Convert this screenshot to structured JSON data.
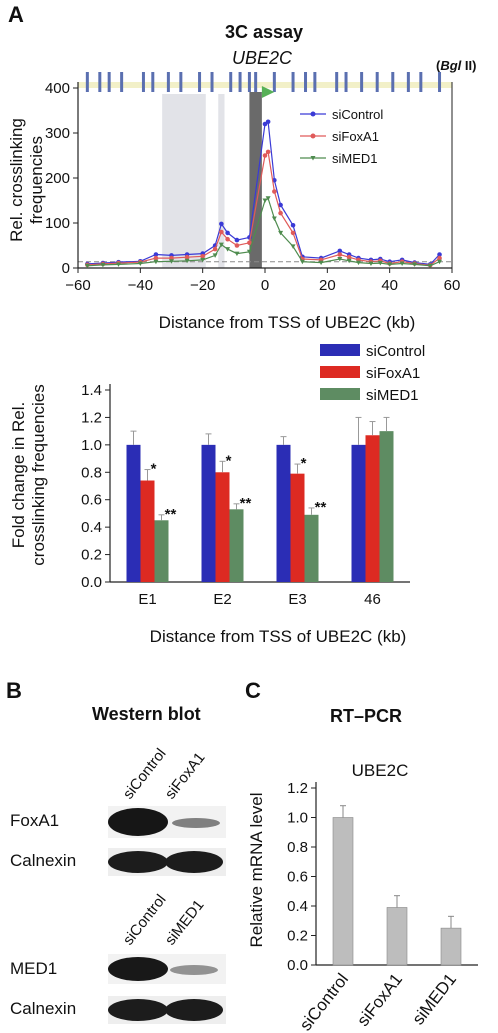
{
  "panelA": {
    "letter": "A",
    "title": "3C assay",
    "gene": "UBE2C",
    "enzyme_pre": "(",
    "enzyme_ital": "Bgl",
    "enzyme_post": " II)",
    "top_chart_xlabel": "Distance from TSS of UBE2C (kb)",
    "top_chart_ylabel_line1": "Rel. crosslinking",
    "top_chart_ylabel_line2": "frequencies",
    "bottom_chart_xlabel": "Distance from TSS of UBE2C (kb)",
    "bottom_chart_ylabel_line1": "Fold change in Rel.",
    "bottom_chart_ylabel_line2": "crosslinking frequencies"
  },
  "panelB": {
    "letter": "B",
    "title": "Western blot",
    "lanes1": [
      "siControl",
      "siFoxA1"
    ],
    "lanes2": [
      "siControl",
      "siMED1"
    ],
    "rows": [
      "FoxA1",
      "Calnexin",
      "MED1",
      "Calnexin"
    ]
  },
  "panelC": {
    "letter": "C",
    "title": "RT–PCR",
    "ylabel": "Relative mRNA level"
  },
  "colors": {
    "siControl_line": "#3a3ad6",
    "siFoxA1_line": "#e05a5a",
    "siMED1_line": "#4f8c4f",
    "siControl_bar": "#2b2db5",
    "siFoxA1_bar": "#dd2a22",
    "siMED1_bar": "#5e8c62",
    "grey_bar": "#bdbdbd"
  },
  "chart_data": [
    {
      "type": "line",
      "title": "3C assay",
      "subtitle": "UBE2C",
      "xlabel": "Distance from TSS of UBE2C (kb)",
      "ylabel": "Rel. crosslinking frequencies",
      "xlim": [
        -60,
        60
      ],
      "ylim": [
        0,
        400
      ],
      "xticks": [
        "−60",
        "−40",
        "−20",
        "0",
        "20",
        "40",
        "60"
      ],
      "yticks": [
        "0",
        "100",
        "200",
        "300",
        "400"
      ],
      "legend_position": "top-right",
      "x": [
        -57,
        -52,
        -47,
        -40,
        -35,
        -30,
        -25,
        -20,
        -16,
        -14,
        -12,
        -9,
        -5,
        0,
        1,
        3,
        5,
        9,
        12,
        18,
        24,
        27,
        30,
        34,
        37,
        40,
        44,
        48,
        53,
        56
      ],
      "series": [
        {
          "name": "siControl",
          "values": [
            9,
            11,
            13,
            15,
            30,
            28,
            30,
            32,
            50,
            98,
            78,
            62,
            68,
            320,
            325,
            195,
            140,
            95,
            25,
            22,
            38,
            30,
            22,
            18,
            20,
            14,
            18,
            12,
            8,
            30
          ]
        },
        {
          "name": "siFoxA1",
          "values": [
            7,
            9,
            11,
            13,
            22,
            22,
            24,
            26,
            42,
            80,
            64,
            50,
            56,
            250,
            258,
            170,
            122,
            78,
            20,
            18,
            30,
            24,
            18,
            14,
            16,
            10,
            14,
            10,
            6,
            22
          ]
        },
        {
          "name": "siMED1",
          "values": [
            5,
            7,
            8,
            10,
            14,
            15,
            16,
            18,
            28,
            52,
            42,
            32,
            36,
            150,
            155,
            110,
            78,
            48,
            14,
            12,
            20,
            16,
            12,
            10,
            11,
            8,
            10,
            8,
            5,
            14
          ]
        }
      ]
    },
    {
      "type": "bar",
      "xlabel": "Distance from TSS of UBE2C (kb)",
      "ylabel": "Fold change in Rel. crosslinking frequencies",
      "categories": [
        "E1",
        "E2",
        "E3",
        "46"
      ],
      "ylim": [
        0,
        1.4
      ],
      "yticks": [
        "0.0",
        "0.2",
        "0.4",
        "0.6",
        "0.8",
        "1.0",
        "1.2",
        "1.4"
      ],
      "legend_position": "top-right",
      "series": [
        {
          "name": "siControl",
          "values": [
            1.0,
            1.0,
            1.0,
            1.0
          ],
          "errors": [
            0.1,
            0.08,
            0.06,
            0.2
          ]
        },
        {
          "name": "siFoxA1",
          "values": [
            0.74,
            0.8,
            0.79,
            1.07
          ],
          "errors": [
            0.08,
            0.08,
            0.07,
            0.1
          ]
        },
        {
          "name": "siMED1",
          "values": [
            0.45,
            0.53,
            0.49,
            1.1
          ],
          "errors": [
            0.04,
            0.04,
            0.05,
            0.1
          ]
        }
      ],
      "annotations": {
        "siFoxA1": [
          "*",
          "*",
          "*",
          ""
        ],
        "siMED1": [
          "**",
          "**",
          "**",
          ""
        ]
      }
    },
    {
      "type": "bar",
      "title": "UBE2C",
      "ylabel": "Relative mRNA level",
      "categories": [
        "siControl",
        "siFoxA1",
        "siMED1"
      ],
      "values": [
        1.0,
        0.39,
        0.25
      ],
      "errors": [
        0.08,
        0.08,
        0.08
      ],
      "ylim": [
        0,
        1.2
      ],
      "yticks": [
        "0.0",
        "0.2",
        "0.4",
        "0.6",
        "0.8",
        "1.0",
        "1.2"
      ]
    }
  ]
}
